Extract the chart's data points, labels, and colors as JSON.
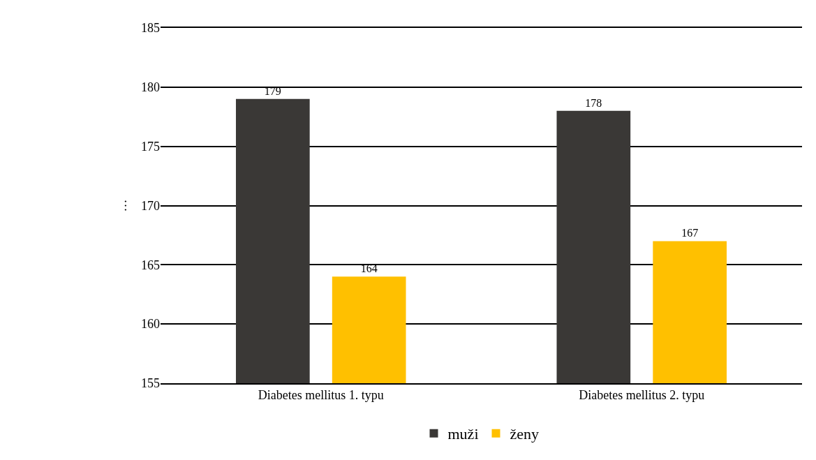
{
  "chart_data": {
    "type": "bar",
    "ylabel": "…",
    "categories": [
      "Diabetes mellitus 1. typu",
      "Diabetes mellitus 2. typu"
    ],
    "series": [
      {
        "name": "muži",
        "color": "#3a3836",
        "values": [
          179,
          178
        ]
      },
      {
        "name": "ženy",
        "color": "#ffc000",
        "values": [
          164,
          167
        ]
      }
    ],
    "ylim": [
      155,
      185
    ],
    "yticks": [
      155,
      160,
      165,
      170,
      175,
      180,
      185
    ],
    "grid": "y",
    "legend": "bottom",
    "data_labels": true
  }
}
